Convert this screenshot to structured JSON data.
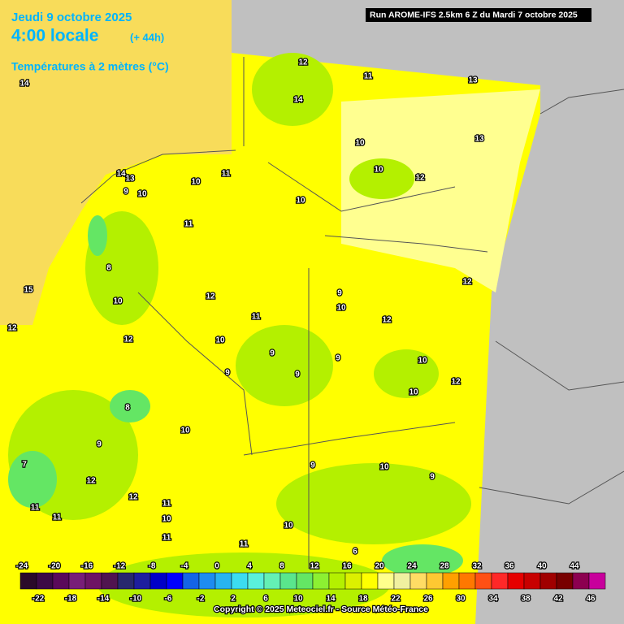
{
  "header": {
    "date": "Jeudi 9 octobre 2025",
    "time": "4:00 locale",
    "lead": "(+ 44h)",
    "field": "Températures à 2 mètres (°C)",
    "run": "Run AROME-IFS 2.5km 6 Z du Mardi 7 octobre 2025"
  },
  "scale": {
    "top_labels": [
      -24,
      -20,
      -16,
      -12,
      -8,
      -4,
      0,
      4,
      8,
      12,
      16,
      20,
      24,
      28,
      32,
      36,
      40,
      44
    ],
    "bottom_labels": [
      -22,
      -18,
      -14,
      -10,
      -6,
      -2,
      2,
      6,
      10,
      14,
      18,
      22,
      26,
      30,
      34,
      38,
      42,
      46
    ],
    "colors": [
      "#2a0a2a",
      "#3c0a46",
      "#5a0a5a",
      "#781e78",
      "#6e1464",
      "#501450",
      "#28286e",
      "#1e1e9e",
      "#0000c8",
      "#0000ff",
      "#1464e6",
      "#1e8cf0",
      "#28b4f0",
      "#3cdcf0",
      "#5af0dc",
      "#64f0b4",
      "#5ae68c",
      "#64e664",
      "#8cf032",
      "#b4f000",
      "#dcf000",
      "#ffff00",
      "#ffff8c",
      "#f0f0a0",
      "#ffdc64",
      "#ffc832",
      "#ffa000",
      "#ff7800",
      "#ff5014",
      "#ff2828",
      "#e60000",
      "#c80000",
      "#a00000",
      "#780000",
      "#8c0050",
      "#c8009c"
    ],
    "copyright": "Copyright © 2025 Meteociel.fr - Source Météo-France"
  },
  "map": {
    "contour_labels": [
      12,
      11,
      13,
      14,
      13,
      10,
      10,
      12,
      14,
      14,
      13,
      10,
      11,
      9,
      10,
      10,
      11,
      8,
      15,
      10,
      12,
      12,
      9,
      10,
      12,
      12,
      11,
      12,
      10,
      9,
      9,
      10,
      9,
      9,
      12,
      10,
      8,
      10,
      9,
      7,
      12,
      10,
      9,
      9,
      11,
      11,
      12,
      10,
      11,
      11,
      10,
      11,
      6
    ]
  }
}
